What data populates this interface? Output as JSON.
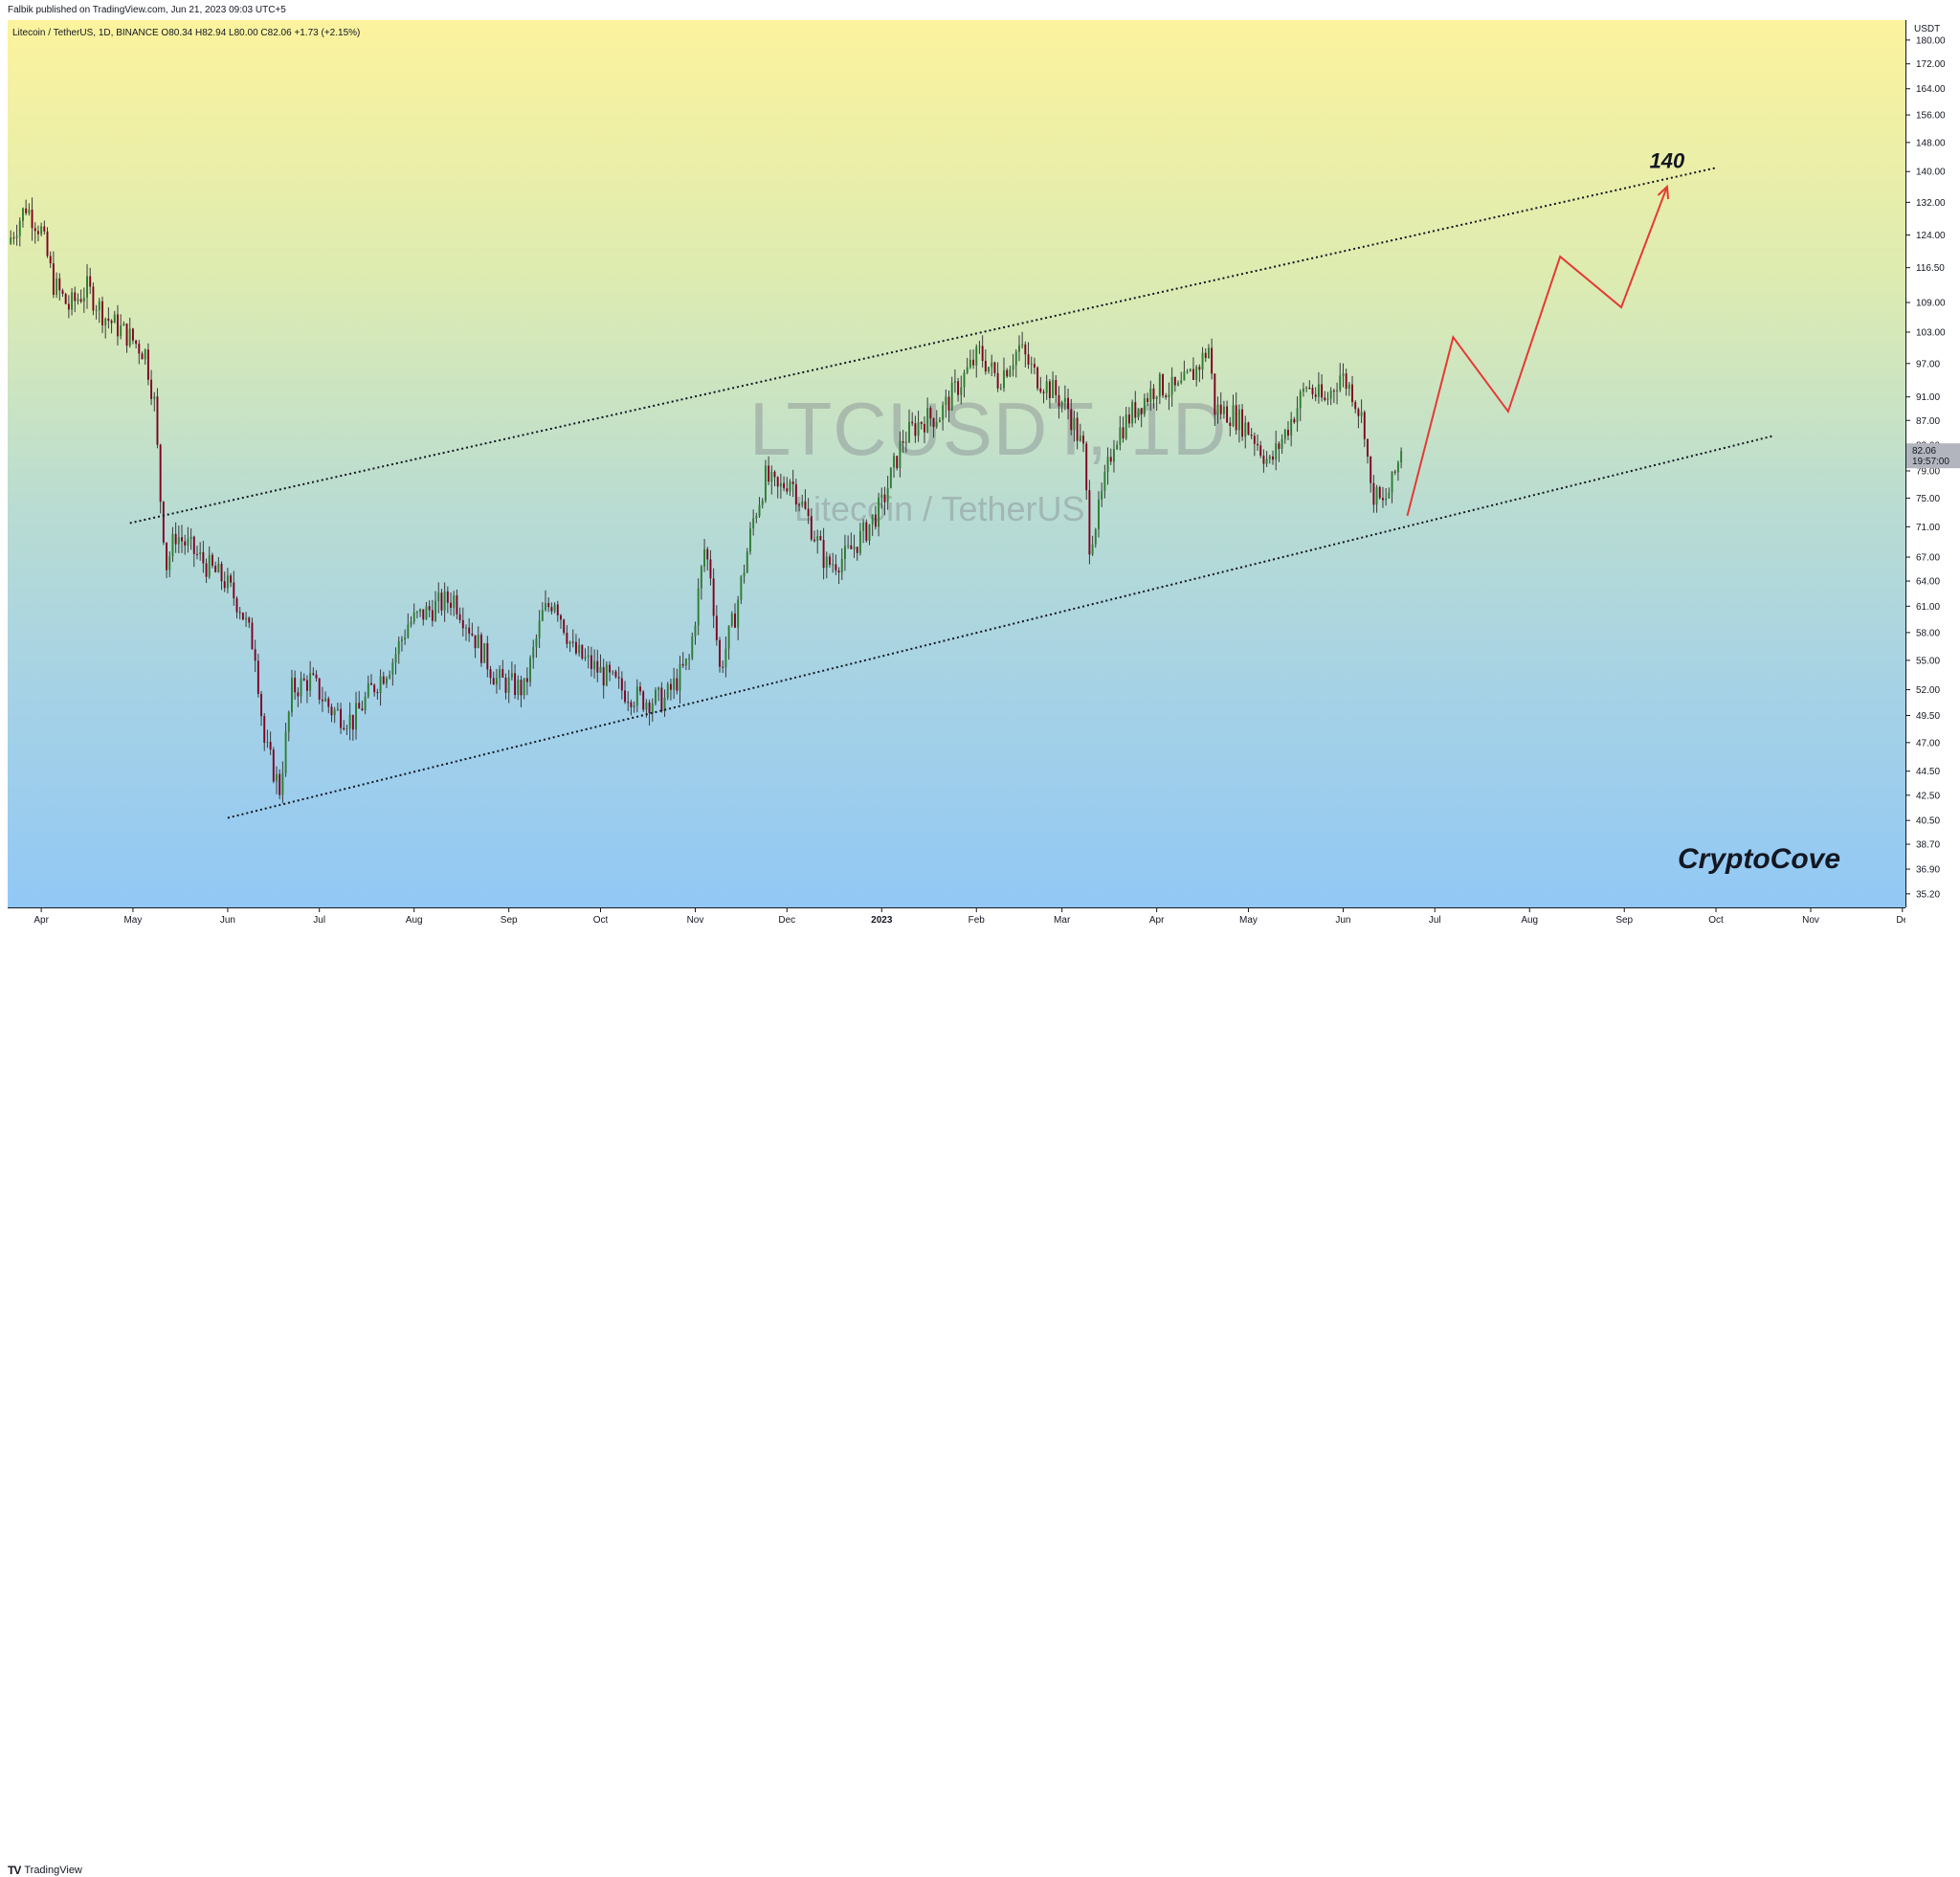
{
  "header": {
    "published": "Falbik published on TradingView.com, Jun 21, 2023 09:03 UTC+5"
  },
  "legend": {
    "text": "Litecoin / TetherUS, 1D, BINANCE  O80.34  H82.94  L80.00  C82.06  +1.73 (+2.15%)"
  },
  "watermark": {
    "symbol": "LTCUSDT, 1D",
    "name": "Litecoin / TetherUS"
  },
  "annotations": {
    "target": "140",
    "author": "CryptoCove"
  },
  "footer": {
    "brand": "TradingView",
    "logo": "TV"
  },
  "colors": {
    "candle_up": "#2e7d32",
    "candle_down": "#800020",
    "projection": "#e53935",
    "price_tag": "#b2b5be"
  },
  "chart_data": {
    "type": "candlestick",
    "price_scale_unit": "USDT",
    "scale": "log",
    "y_ticks": [
      180,
      172,
      164,
      156,
      148,
      140,
      132,
      124,
      116.5,
      109,
      103,
      97,
      91,
      87,
      83,
      79,
      75,
      71,
      67,
      64,
      61,
      58,
      55,
      52,
      49.5,
      47,
      44.5,
      42.5,
      40.5,
      38.7,
      36.9,
      35.2
    ],
    "ylim": [
      34.3,
      187
    ],
    "x_labels": [
      {
        "label": "Apr",
        "date": "2022-04-01"
      },
      {
        "label": "May",
        "date": "2022-05-01"
      },
      {
        "label": "Jun",
        "date": "2022-06-01"
      },
      {
        "label": "Jul",
        "date": "2022-07-01"
      },
      {
        "label": "Aug",
        "date": "2022-08-01"
      },
      {
        "label": "Sep",
        "date": "2022-09-01"
      },
      {
        "label": "Oct",
        "date": "2022-10-01"
      },
      {
        "label": "Nov",
        "date": "2022-11-01"
      },
      {
        "label": "Dec",
        "date": "2022-12-01"
      },
      {
        "label": "2023",
        "date": "2023-01-01"
      },
      {
        "label": "Feb",
        "date": "2023-02-01"
      },
      {
        "label": "Mar",
        "date": "2023-03-01"
      },
      {
        "label": "Apr",
        "date": "2023-04-01"
      },
      {
        "label": "May",
        "date": "2023-05-01"
      },
      {
        "label": "Jun",
        "date": "2023-06-01"
      },
      {
        "label": "Jul",
        "date": "2023-07-01"
      },
      {
        "label": "Aug",
        "date": "2023-08-01"
      },
      {
        "label": "Sep",
        "date": "2023-09-01"
      },
      {
        "label": "Oct",
        "date": "2023-10-01"
      },
      {
        "label": "Nov",
        "date": "2023-11-01"
      },
      {
        "label": "De",
        "date": "2023-12-01"
      }
    ],
    "xlim": [
      "2022-03-21",
      "2023-12-02"
    ],
    "last_price": {
      "value": 82.06,
      "label": "82.06",
      "countdown": "19:57:00"
    },
    "price_path": [
      [
        "2022-03-21",
        122
      ],
      [
        "2022-03-27",
        131
      ],
      [
        "2022-04-01",
        125
      ],
      [
        "2022-04-05",
        113
      ],
      [
        "2022-04-10",
        108
      ],
      [
        "2022-04-16",
        112
      ],
      [
        "2022-04-22",
        106
      ],
      [
        "2022-04-30",
        102
      ],
      [
        "2022-05-05",
        99
      ],
      [
        "2022-05-08",
        90
      ],
      [
        "2022-05-10",
        75
      ],
      [
        "2022-05-12",
        66
      ],
      [
        "2022-05-15",
        70
      ],
      [
        "2022-05-20",
        68
      ],
      [
        "2022-05-25",
        66
      ],
      [
        "2022-05-31",
        64
      ],
      [
        "2022-06-05",
        61
      ],
      [
        "2022-06-10",
        56
      ],
      [
        "2022-06-13",
        47
      ],
      [
        "2022-06-18",
        43
      ],
      [
        "2022-06-22",
        52
      ],
      [
        "2022-06-28",
        53
      ],
      [
        "2022-07-05",
        50
      ],
      [
        "2022-07-12",
        49
      ],
      [
        "2022-07-18",
        52
      ],
      [
        "2022-07-25",
        55
      ],
      [
        "2022-07-30",
        59
      ],
      [
        "2022-08-08",
        61
      ],
      [
        "2022-08-14",
        62
      ],
      [
        "2022-08-20",
        58
      ],
      [
        "2022-08-28",
        53
      ],
      [
        "2022-09-06",
        52
      ],
      [
        "2022-09-12",
        60
      ],
      [
        "2022-09-16",
        62
      ],
      [
        "2022-09-22",
        56
      ],
      [
        "2022-09-30",
        54
      ],
      [
        "2022-10-08",
        52
      ],
      [
        "2022-10-15",
        51
      ],
      [
        "2022-10-22",
        51
      ],
      [
        "2022-10-30",
        55
      ],
      [
        "2022-11-04",
        68
      ],
      [
        "2022-11-06",
        65
      ],
      [
        "2022-11-09",
        54
      ],
      [
        "2022-11-14",
        60
      ],
      [
        "2022-11-20",
        72
      ],
      [
        "2022-11-24",
        78
      ],
      [
        "2022-11-28",
        76
      ],
      [
        "2022-12-02",
        78
      ],
      [
        "2022-12-08",
        72
      ],
      [
        "2022-12-14",
        66
      ],
      [
        "2022-12-20",
        67
      ],
      [
        "2022-12-26",
        70
      ],
      [
        "2023-01-01",
        74
      ],
      [
        "2023-01-08",
        84
      ],
      [
        "2023-01-14",
        87
      ],
      [
        "2023-01-20",
        88
      ],
      [
        "2023-01-26",
        93
      ],
      [
        "2023-02-02",
        99
      ],
      [
        "2023-02-08",
        94
      ],
      [
        "2023-02-15",
        100
      ],
      [
        "2023-02-20",
        95
      ],
      [
        "2023-02-26",
        92
      ],
      [
        "2023-03-03",
        89
      ],
      [
        "2023-03-08",
        82
      ],
      [
        "2023-03-10",
        69
      ],
      [
        "2023-03-13",
        73
      ],
      [
        "2023-03-18",
        84
      ],
      [
        "2023-03-25",
        89
      ],
      [
        "2023-04-01",
        93
      ],
      [
        "2023-04-08",
        92
      ],
      [
        "2023-04-14",
        96
      ],
      [
        "2023-04-18",
        100
      ],
      [
        "2023-04-20",
        89
      ],
      [
        "2023-04-26",
        88
      ],
      [
        "2023-05-02",
        85
      ],
      [
        "2023-05-08",
        80
      ],
      [
        "2023-05-14",
        86
      ],
      [
        "2023-05-20",
        93
      ],
      [
        "2023-05-26",
        90
      ],
      [
        "2023-05-31",
        95
      ],
      [
        "2023-06-04",
        92
      ],
      [
        "2023-06-08",
        86
      ],
      [
        "2023-06-10",
        76
      ],
      [
        "2023-06-14",
        74
      ],
      [
        "2023-06-17",
        77
      ],
      [
        "2023-06-20",
        82.06
      ]
    ],
    "drawings": {
      "channel_upper": {
        "start": [
          "2022-04-30",
          71.5
        ],
        "end": [
          "2023-10-01",
          141
        ],
        "style": "dotted"
      },
      "channel_lower": {
        "start": [
          "2022-06-01",
          40.7
        ],
        "end": [
          "2023-10-20",
          84.5
        ],
        "style": "dotted"
      },
      "projection": {
        "points": [
          [
            "2023-06-22",
            72.5
          ],
          [
            "2023-07-07",
            102
          ],
          [
            "2023-07-25",
            88.5
          ],
          [
            "2023-08-11",
            119
          ],
          [
            "2023-08-31",
            108
          ],
          [
            "2023-09-15",
            136
          ]
        ],
        "arrow": true
      },
      "target_label": {
        "text": "140",
        "at": [
          "2023-09-15",
          141
        ]
      }
    }
  }
}
